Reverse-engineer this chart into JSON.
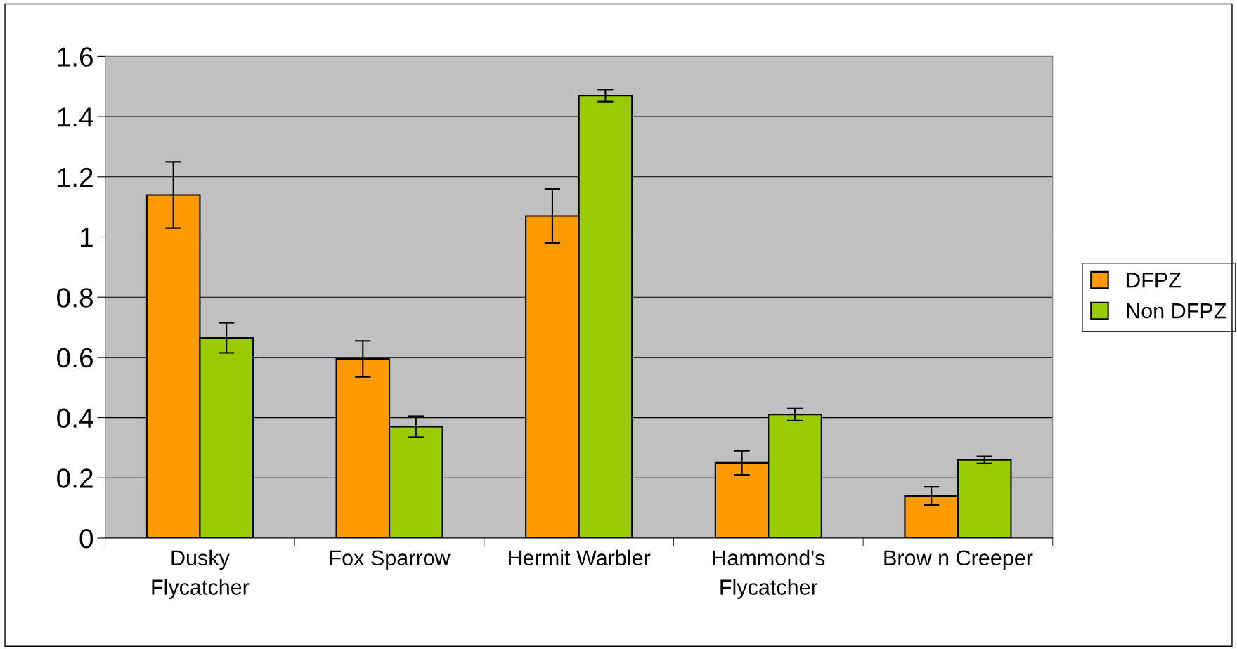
{
  "chart_data": {
    "type": "bar",
    "categories": [
      "Dusky\nFlycatcher",
      "Fox Sparrow",
      "Hermit Warbler",
      "Hammond's\nFlycatcher",
      "Brow n Creeper"
    ],
    "series": [
      {
        "name": "DFPZ",
        "color": "#ff9900",
        "values": [
          1.14,
          0.595,
          1.07,
          0.25,
          0.14
        ],
        "errors": [
          0.11,
          0.06,
          0.09,
          0.04,
          0.03
        ]
      },
      {
        "name": "Non DFPZ",
        "color": "#99cc00",
        "values": [
          0.665,
          0.37,
          1.47,
          0.41,
          0.26
        ],
        "errors": [
          0.05,
          0.035,
          0.02,
          0.02,
          0.012
        ]
      }
    ],
    "ylim": [
      0,
      1.6
    ],
    "yticks": [
      0,
      0.2,
      0.4,
      0.6,
      0.8,
      1,
      1.2,
      1.4,
      1.6
    ],
    "grid": "y",
    "legend": "right"
  }
}
